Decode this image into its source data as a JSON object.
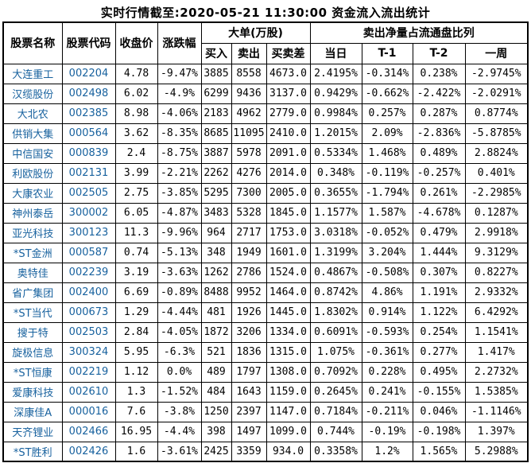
{
  "title": "实时行情截至:2020-05-21 11:30:00 资金流入流出统计",
  "colors": {
    "link_blue": "#17619e",
    "text": "#000000",
    "border": "#000000",
    "background": "#ffffff"
  },
  "table": {
    "header": {
      "stock_name": "股票名称",
      "stock_code": "股票代码",
      "close_price": "收盘价",
      "change_pct": "涨跌幅",
      "big_orders_group": "大单(万股)",
      "buy": "买入",
      "sell": "卖出",
      "buy_sell_diff": "买卖差",
      "net_sell_group": "卖出净量占流通盘比列",
      "today": "当日",
      "t1": "T-1",
      "t2": "T-2",
      "week": "一周"
    },
    "rows": [
      [
        "大连重工",
        "002204",
        "4.78",
        "-9.47%",
        "3885",
        "8558",
        "4673.0",
        "2.4195%",
        "-0.314%",
        "0.238%",
        "-2.9745%"
      ],
      [
        "汉缆股份",
        "002498",
        "6.02",
        "-4.9%",
        "6299",
        "9436",
        "3137.0",
        "0.9429%",
        "-0.662%",
        "-2.422%",
        "-2.0291%"
      ],
      [
        "大北农",
        "002385",
        "8.98",
        "-4.06%",
        "2183",
        "4962",
        "2779.0",
        "0.9984%",
        "0.257%",
        "0.287%",
        "0.8774%"
      ],
      [
        "供销大集",
        "000564",
        "3.62",
        "-8.35%",
        "8685",
        "11095",
        "2410.0",
        "1.2015%",
        "2.09%",
        "-2.836%",
        "-5.8785%"
      ],
      [
        "中信国安",
        "000839",
        "2.4",
        "-8.75%",
        "3887",
        "5978",
        "2091.0",
        "0.5334%",
        "1.468%",
        "0.489%",
        "2.8824%"
      ],
      [
        "利欧股份",
        "002131",
        "3.99",
        "-2.21%",
        "2262",
        "4276",
        "2014.0",
        "0.348%",
        "-0.119%",
        "-0.257%",
        "0.401%"
      ],
      [
        "大康农业",
        "002505",
        "2.75",
        "-3.85%",
        "5295",
        "7300",
        "2005.0",
        "0.3655%",
        "-1.794%",
        "0.261%",
        "-2.2985%"
      ],
      [
        "神州泰岳",
        "300002",
        "6.05",
        "-4.87%",
        "3483",
        "5328",
        "1845.0",
        "1.1577%",
        "1.587%",
        "-4.678%",
        "0.1287%"
      ],
      [
        "亚光科技",
        "300123",
        "11.3",
        "-9.96%",
        "964",
        "2717",
        "1753.0",
        "3.0318%",
        "-0.052%",
        "0.479%",
        "2.9918%"
      ],
      [
        "*ST金洲",
        "000587",
        "0.74",
        "-5.13%",
        "348",
        "1949",
        "1601.0",
        "1.3199%",
        "3.204%",
        "1.444%",
        "9.3129%"
      ],
      [
        "奥特佳",
        "002239",
        "3.19",
        "-3.63%",
        "1262",
        "2786",
        "1524.0",
        "0.4867%",
        "-0.508%",
        "0.307%",
        "0.8227%"
      ],
      [
        "省广集团",
        "002400",
        "6.69",
        "-0.89%",
        "8488",
        "9952",
        "1464.0",
        "0.8742%",
        "4.86%",
        "1.191%",
        "2.9332%"
      ],
      [
        "*ST当代",
        "000673",
        "1.29",
        "-4.44%",
        "481",
        "1926",
        "1445.0",
        "1.8302%",
        "0.914%",
        "1.122%",
        "6.4292%"
      ],
      [
        "搜于特",
        "002503",
        "2.84",
        "-4.05%",
        "1872",
        "3206",
        "1334.0",
        "0.6091%",
        "-0.593%",
        "0.254%",
        "1.1541%"
      ],
      [
        "旋极信息",
        "300324",
        "5.95",
        "-6.3%",
        "521",
        "1836",
        "1315.0",
        "1.075%",
        "-0.361%",
        "0.277%",
        "1.417%"
      ],
      [
        "*ST恒康",
        "002219",
        "1.12",
        "0.0%",
        "489",
        "1797",
        "1308.0",
        "0.7092%",
        "0.228%",
        "0.495%",
        "2.2732%"
      ],
      [
        "爱康科技",
        "002610",
        "1.3",
        "-1.52%",
        "484",
        "1643",
        "1159.0",
        "0.2645%",
        "0.241%",
        "-0.155%",
        "1.5385%"
      ],
      [
        "深康佳A",
        "000016",
        "7.6",
        "-3.8%",
        "1250",
        "2397",
        "1147.0",
        "0.7184%",
        "-0.211%",
        "0.046%",
        "-1.1146%"
      ],
      [
        "天齐锂业",
        "002466",
        "16.95",
        "-4.4%",
        "398",
        "1497",
        "1099.0",
        "0.744%",
        "-0.19%",
        "-0.198%",
        "1.397%"
      ],
      [
        "*ST胜利",
        "002426",
        "1.6",
        "-3.61%",
        "2425",
        "3359",
        "934.0",
        "0.3358%",
        "1.2%",
        "1.565%",
        "5.2988%"
      ]
    ]
  }
}
